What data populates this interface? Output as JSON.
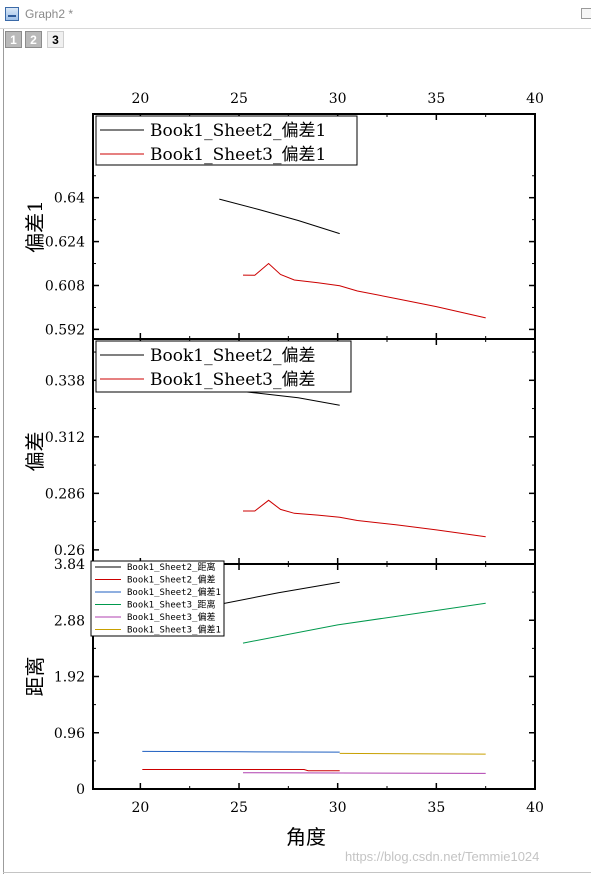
{
  "window": {
    "title": "Graph2 *"
  },
  "layers": [
    {
      "label": "1",
      "active": false
    },
    {
      "label": "2",
      "active": false
    },
    {
      "label": "3",
      "active": true
    }
  ],
  "watermark": "https://blog.csdn.net/Temmie1024",
  "chart_data": [
    {
      "type": "line",
      "panel": "top",
      "ylabel": "偏差1",
      "xlim": [
        17.6,
        40
      ],
      "ylim": [
        0.5885,
        0.6705
      ],
      "x_ticks": [
        20,
        25,
        30,
        35,
        40
      ],
      "y_ticks": [
        0.592,
        0.608,
        0.624,
        0.64
      ],
      "y_tick_labels": [
        "0.592",
        "0.608",
        "0.624",
        "0.64"
      ],
      "top_axis_labels": true,
      "legend_position": "top-left",
      "series": [
        {
          "name": "Book1_Sheet2_偏差1",
          "color": "#000000",
          "x": [
            24.0,
            26.0,
            28.0,
            30.1
          ],
          "y": [
            0.6395,
            0.6357,
            0.6317,
            0.6269
          ]
        },
        {
          "name": "Book1_Sheet3_偏差1",
          "color": "#cc0000",
          "x": [
            25.2,
            25.8,
            26.5,
            27.1,
            27.8,
            29.0,
            30.1,
            31.0,
            33.0,
            35.0,
            37.5
          ],
          "y": [
            0.6118,
            0.6117,
            0.616,
            0.612,
            0.61,
            0.609,
            0.6079,
            0.606,
            0.6032,
            0.6003,
            0.5962
          ]
        }
      ]
    },
    {
      "type": "line",
      "panel": "middle",
      "ylabel": "偏差",
      "xlim": [
        17.6,
        40
      ],
      "ylim": [
        0.2535,
        0.357
      ],
      "x_ticks": [
        20,
        25,
        30,
        35,
        40
      ],
      "y_ticks": [
        0.26,
        0.286,
        0.312,
        0.338
      ],
      "y_tick_labels": [
        "0.26",
        "0.286",
        "0.312",
        "0.338"
      ],
      "legend_position": "top-left",
      "series": [
        {
          "name": "Book1_Sheet2_偏差",
          "color": "#000000",
          "x": [
            24.0,
            26.0,
            28.0,
            30.1
          ],
          "y": [
            0.334,
            0.332,
            0.33,
            0.3265
          ]
        },
        {
          "name": "Book1_Sheet3_偏差",
          "color": "#cc0000",
          "x": [
            25.2,
            25.8,
            26.5,
            27.1,
            27.8,
            29.0,
            30.1,
            31.0,
            33.0,
            35.0,
            37.5
          ],
          "y": [
            0.2779,
            0.2779,
            0.2828,
            0.2786,
            0.2768,
            0.276,
            0.275,
            0.2735,
            0.2715,
            0.2692,
            0.266
          ]
        }
      ]
    },
    {
      "type": "line",
      "panel": "bottom",
      "xlabel": "角度",
      "ylabel": "距离",
      "xlim": [
        17.6,
        40
      ],
      "ylim": [
        0,
        3.84
      ],
      "x_ticks": [
        20,
        25,
        30,
        35,
        40
      ],
      "y_ticks": [
        0,
        0.96,
        1.92,
        2.88,
        3.84
      ],
      "y_tick_labels": [
        "0",
        "0.96",
        "1.92",
        "2.88",
        "3.84"
      ],
      "legend_position": "top-left",
      "series": [
        {
          "name": "Book1_Sheet2_距离",
          "color": "#000000",
          "x": [
            24.0,
            27.0,
            30.1
          ],
          "y": [
            3.15,
            3.35,
            3.53
          ]
        },
        {
          "name": "Book1_Sheet2_偏差",
          "color": "#cc0000",
          "x": [
            20.1,
            28.3,
            28.5,
            30.1
          ],
          "y": [
            0.333,
            0.333,
            0.312,
            0.312
          ]
        },
        {
          "name": "Book1_Sheet2_偏差1",
          "color": "#1f5fc0",
          "x": [
            20.1,
            25.0,
            30.1
          ],
          "y": [
            0.642,
            0.635,
            0.63
          ]
        },
        {
          "name": "Book1_Sheet3_距离",
          "color": "#00994d",
          "x": [
            25.2,
            30.0,
            37.5
          ],
          "y": [
            2.49,
            2.8,
            3.17
          ]
        },
        {
          "name": "Book1_Sheet3_偏差",
          "color": "#b040b0",
          "x": [
            25.2,
            37.5
          ],
          "y": [
            0.278,
            0.266
          ]
        },
        {
          "name": "Book1_Sheet3_偏差1",
          "color": "#c8a000",
          "x": [
            30.1,
            37.5
          ],
          "y": [
            0.607,
            0.596
          ]
        }
      ]
    }
  ]
}
